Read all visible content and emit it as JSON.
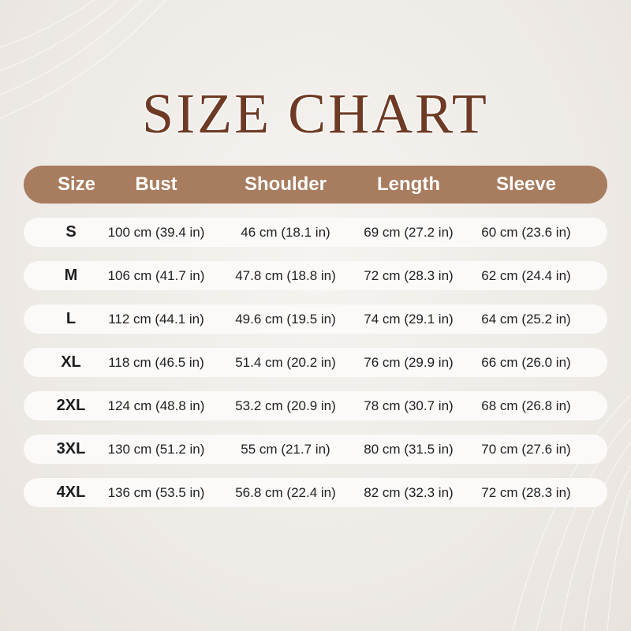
{
  "title": "SIZE CHART",
  "colors": {
    "header_bg": "#a87c5e",
    "title": "#6e3a24",
    "row_bg": "#fbfaf9"
  },
  "columns": [
    "Size",
    "Bust",
    "Shoulder",
    "Length",
    "Sleeve"
  ],
  "rows": [
    [
      "S",
      "100 cm (39.4 in)",
      "46 cm (18.1 in)",
      "69 cm (27.2 in)",
      "60 cm (23.6 in)"
    ],
    [
      "M",
      "106 cm (41.7 in)",
      "47.8 cm (18.8 in)",
      "72 cm (28.3 in)",
      "62 cm (24.4 in)"
    ],
    [
      "L",
      "112 cm (44.1 in)",
      "49.6 cm (19.5 in)",
      "74 cm (29.1 in)",
      "64 cm (25.2 in)"
    ],
    [
      "XL",
      "118 cm (46.5 in)",
      "51.4 cm (20.2 in)",
      "76 cm (29.9 in)",
      "66 cm (26.0 in)"
    ],
    [
      "2XL",
      "124 cm (48.8 in)",
      "53.2 cm (20.9 in)",
      "78 cm (30.7 in)",
      "68 cm (26.8 in)"
    ],
    [
      "3XL",
      "130 cm (51.2 in)",
      "55 cm (21.7 in)",
      "80 cm (31.5 in)",
      "70 cm (27.6 in)"
    ],
    [
      "4XL",
      "136 cm (53.5 in)",
      "56.8 cm (22.4 in)",
      "82 cm (32.3 in)",
      "72 cm (28.3 in)"
    ]
  ]
}
